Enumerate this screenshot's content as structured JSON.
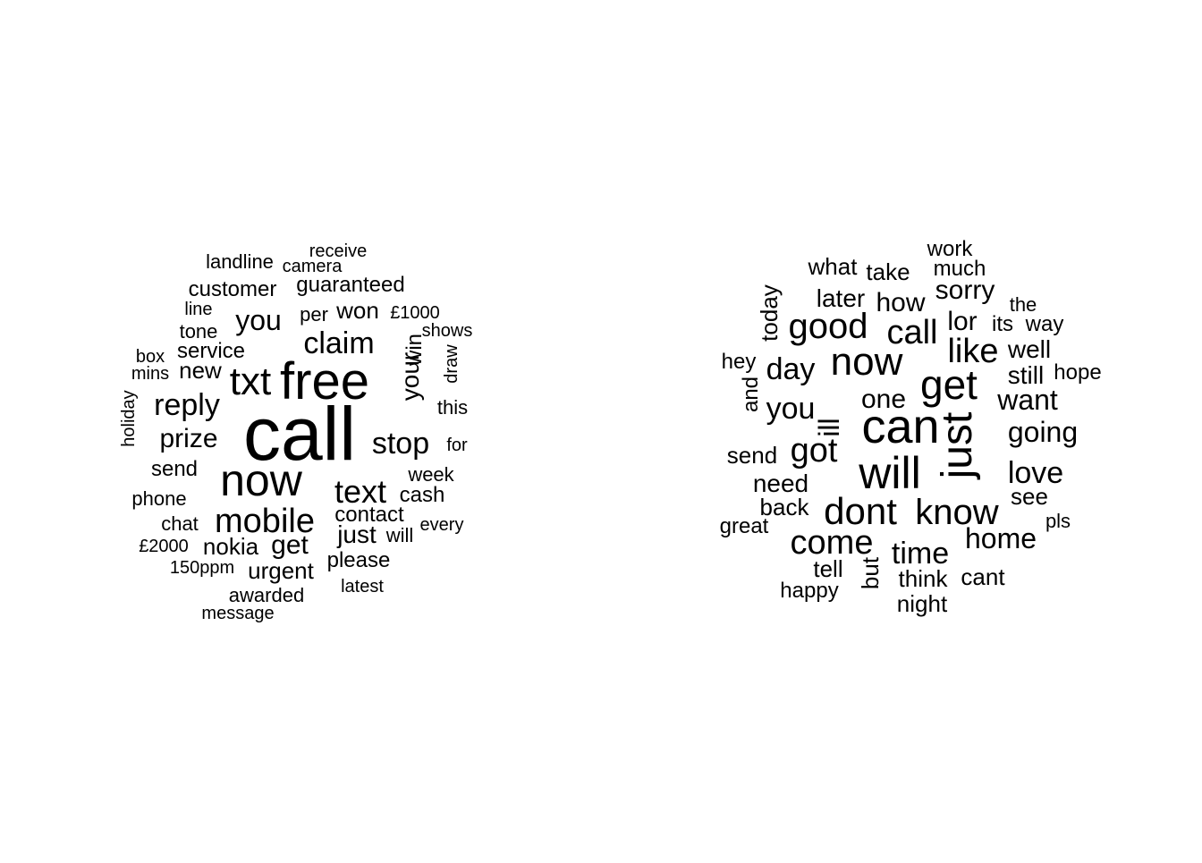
{
  "chart_data": [
    {
      "type": "wordcloud",
      "words": [
        "call",
        "free",
        "now",
        "txt",
        "mobile",
        "text",
        "claim",
        "stop",
        "reply",
        "prize",
        "you",
        "your",
        "win",
        "won",
        "£1000",
        "per",
        "shows",
        "draw",
        "this",
        "for",
        "week",
        "cash",
        "every",
        "contact",
        "just",
        "will",
        "please",
        "latest",
        "get",
        "urgent",
        "nokia",
        "awarded",
        "message",
        "150ppm",
        "£2000",
        "chat",
        "phone",
        "send",
        "holiday",
        "mins",
        "new",
        "box",
        "service",
        "tone",
        "line",
        "customer",
        "guaranteed",
        "landline",
        "camera",
        "receive"
      ]
    },
    {
      "type": "wordcloud",
      "words": [
        "can",
        "will",
        "now",
        "get",
        "just",
        "dont",
        "know",
        "call",
        "good",
        "come",
        "got",
        "like",
        "love",
        "time",
        "home",
        "day",
        "you",
        "going",
        "want",
        "one",
        "ill",
        "later",
        "how",
        "sorry",
        "lor",
        "well",
        "still",
        "hope",
        "the",
        "its",
        "way",
        "work",
        "much",
        "take",
        "what",
        "today",
        "hey",
        "and",
        "send",
        "need",
        "back",
        "great",
        "tell",
        "happy",
        "but",
        "think",
        "night",
        "cant",
        "see",
        "pls"
      ]
    }
  ]
}
